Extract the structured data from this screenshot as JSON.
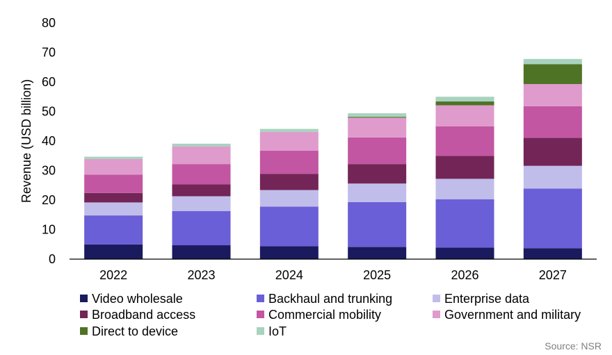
{
  "chart_data": {
    "type": "bar",
    "stacked": true,
    "categories": [
      "2022",
      "2023",
      "2024",
      "2025",
      "2026",
      "2027"
    ],
    "ylabel": "Revenue (USD billion)",
    "xlabel": "",
    "ylim": [
      0,
      80
    ],
    "yticks": [
      0,
      10,
      20,
      30,
      40,
      50,
      60,
      70,
      80
    ],
    "grid": false,
    "legend_position": "bottom",
    "series": [
      {
        "name": "Video wholesale",
        "color": "#1a1a5e",
        "values": [
          5.0,
          4.7,
          4.4,
          4.1,
          3.9,
          3.7
        ]
      },
      {
        "name": "Backhaul and trunking",
        "color": "#6a5fd6",
        "values": [
          9.8,
          11.6,
          13.4,
          15.2,
          16.4,
          20.2
        ]
      },
      {
        "name": "Enterprise data",
        "color": "#c1bdea",
        "values": [
          4.4,
          5.0,
          5.6,
          6.3,
          6.9,
          7.7
        ]
      },
      {
        "name": "Broadband access",
        "color": "#732557",
        "values": [
          3.2,
          4.0,
          5.5,
          6.6,
          7.8,
          9.5
        ]
      },
      {
        "name": "Commercial mobility",
        "color": "#c256a2",
        "values": [
          6.2,
          6.9,
          7.8,
          9.0,
          10.0,
          10.7
        ]
      },
      {
        "name": "Government and military",
        "color": "#df9bcc",
        "values": [
          5.3,
          6.0,
          6.4,
          6.7,
          7.1,
          7.5
        ]
      },
      {
        "name": "Direct to device",
        "color": "#4e7324",
        "values": [
          0.0,
          0.0,
          0.0,
          0.3,
          1.3,
          6.7
        ]
      },
      {
        "name": "IoT",
        "color": "#a8d3bf",
        "values": [
          0.8,
          0.9,
          1.0,
          1.2,
          1.6,
          1.8
        ]
      }
    ]
  },
  "source": "Source: NSR"
}
